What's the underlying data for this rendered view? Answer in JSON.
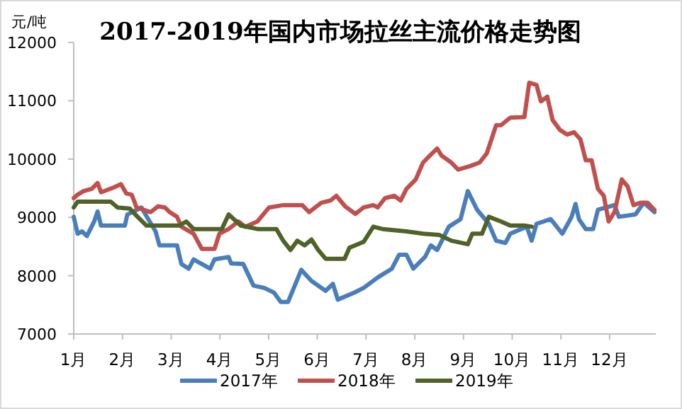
{
  "chart_data": {
    "type": "line",
    "title": "2017-2019年国内市场拉丝主流价格走势图",
    "ylabel": "元/吨",
    "xlim": [
      1,
      12.95
    ],
    "ylim": [
      7000,
      12000
    ],
    "yticks": [
      7000,
      8000,
      9000,
      10000,
      11000,
      12000
    ],
    "xticks": [
      {
        "value": 1,
        "label": "1月"
      },
      {
        "value": 2,
        "label": "2月"
      },
      {
        "value": 3,
        "label": "3月"
      },
      {
        "value": 4,
        "label": "4月"
      },
      {
        "value": 5,
        "label": "5月"
      },
      {
        "value": 6,
        "label": "6月"
      },
      {
        "value": 7,
        "label": "7月"
      },
      {
        "value": 8,
        "label": "8月"
      },
      {
        "value": 9,
        "label": "9月"
      },
      {
        "value": 10,
        "label": "10月"
      },
      {
        "value": 11,
        "label": "11月"
      },
      {
        "value": 12,
        "label": "12月"
      }
    ],
    "grid": false,
    "legend": "bottom",
    "marker": "none",
    "line_style": "solid",
    "series": [
      {
        "name": "2017年",
        "color": "#4a7ebb",
        "x": [
          1.0,
          1.08,
          1.17,
          1.27,
          1.42,
          1.49,
          1.56,
          2.05,
          2.1,
          2.39,
          2.53,
          2.68,
          2.76,
          3.12,
          3.21,
          3.36,
          3.46,
          3.8,
          3.89,
          4.18,
          4.23,
          4.48,
          4.69,
          4.91,
          5.11,
          5.25,
          5.4,
          5.67,
          5.88,
          6.17,
          6.32,
          6.42,
          6.76,
          6.95,
          7.24,
          7.53,
          7.68,
          7.83,
          7.97,
          8.21,
          8.33,
          8.46,
          8.7,
          8.94,
          9.09,
          9.28,
          9.52,
          9.67,
          9.86,
          9.96,
          10.3,
          10.4,
          10.5,
          10.79,
          11.03,
          11.22,
          11.3,
          11.37,
          11.51,
          11.66,
          11.76,
          12.1,
          12.19,
          12.53,
          12.7,
          12.92
        ],
        "values": [
          9010,
          8720,
          8760,
          8680,
          8930,
          9100,
          8860,
          8860,
          9050,
          9170,
          8970,
          8760,
          8520,
          8520,
          8200,
          8120,
          8280,
          8120,
          8280,
          8320,
          8210,
          8200,
          7830,
          7790,
          7710,
          7550,
          7550,
          8100,
          7910,
          7740,
          7860,
          7590,
          7710,
          7790,
          7970,
          8120,
          8360,
          8360,
          8120,
          8320,
          8520,
          8440,
          8840,
          8970,
          9450,
          9130,
          8890,
          8600,
          8560,
          8720,
          8840,
          8600,
          8890,
          8970,
          8720,
          9010,
          9230,
          8970,
          8800,
          8800,
          9130,
          9210,
          9010,
          9050,
          9250,
          9090
        ]
      },
      {
        "name": "2018年",
        "color": "#c0504d",
        "x": [
          1.0,
          1.08,
          1.2,
          1.37,
          1.49,
          1.56,
          1.81,
          1.97,
          2.08,
          2.19,
          2.29,
          2.58,
          2.73,
          2.87,
          2.97,
          3.12,
          3.21,
          3.46,
          3.63,
          3.89,
          3.99,
          4.18,
          4.38,
          4.52,
          4.77,
          5.01,
          5.3,
          5.69,
          5.83,
          6.08,
          6.27,
          6.39,
          6.57,
          6.78,
          6.95,
          7.15,
          7.24,
          7.39,
          7.58,
          7.71,
          7.83,
          8.02,
          8.17,
          8.31,
          8.46,
          8.55,
          8.75,
          8.89,
          9.14,
          9.33,
          9.48,
          9.67,
          9.77,
          9.96,
          10.25,
          10.35,
          10.5,
          10.59,
          10.72,
          10.83,
          10.98,
          11.13,
          11.27,
          11.4,
          11.51,
          11.63,
          11.76,
          11.88,
          11.98,
          12.1,
          12.25,
          12.37,
          12.49,
          12.63,
          12.78,
          12.92
        ],
        "values": [
          9330,
          9390,
          9450,
          9490,
          9590,
          9430,
          9510,
          9570,
          9410,
          9390,
          9170,
          9090,
          9190,
          9170,
          9090,
          9010,
          8840,
          8720,
          8460,
          8460,
          8720,
          8800,
          8930,
          8840,
          8930,
          9170,
          9210,
          9210,
          9090,
          9250,
          9290,
          9370,
          9190,
          9060,
          9170,
          9210,
          9170,
          9330,
          9370,
          9290,
          9490,
          9650,
          9940,
          10060,
          10180,
          10060,
          9940,
          9820,
          9880,
          9940,
          10100,
          10580,
          10580,
          10710,
          10720,
          11310,
          11270,
          10990,
          11070,
          10670,
          10500,
          10420,
          10460,
          10340,
          9980,
          9980,
          9490,
          9370,
          8930,
          9090,
          9650,
          9530,
          9210,
          9250,
          9250,
          9130
        ]
      },
      {
        "name": "2019年",
        "color": "#4f6228",
        "x": [
          1.0,
          1.08,
          1.76,
          1.9,
          2.15,
          2.31,
          2.49,
          3.17,
          3.31,
          3.46,
          4.04,
          4.18,
          4.43,
          4.77,
          5.16,
          5.3,
          5.45,
          5.59,
          5.74,
          5.88,
          6.02,
          6.17,
          6.56,
          6.66,
          6.95,
          7.15,
          7.34,
          7.83,
          8.17,
          8.5,
          8.75,
          9.09,
          9.18,
          9.38,
          9.52,
          9.77,
          9.96,
          10.25,
          10.4
        ],
        "values": [
          9170,
          9270,
          9270,
          9170,
          9150,
          9010,
          8860,
          8860,
          8930,
          8800,
          8800,
          9050,
          8860,
          8800,
          8800,
          8600,
          8440,
          8600,
          8520,
          8620,
          8440,
          8290,
          8290,
          8480,
          8580,
          8840,
          8800,
          8760,
          8720,
          8700,
          8600,
          8540,
          8720,
          8720,
          9010,
          8930,
          8860,
          8860,
          8840
        ]
      }
    ]
  }
}
